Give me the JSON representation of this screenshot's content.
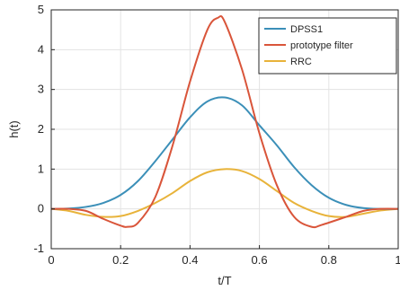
{
  "chart_data": {
    "type": "line",
    "title": "",
    "xlabel": "t/T",
    "ylabel": "h(t)",
    "xlim": [
      0,
      1
    ],
    "ylim": [
      -1,
      5
    ],
    "xticks": [
      0,
      0.2,
      0.4,
      0.6,
      0.8,
      1
    ],
    "xtick_labels": [
      "0",
      "0.2",
      "0.4",
      "0.6",
      "0.8",
      "1"
    ],
    "yticks": [
      -1,
      0,
      1,
      2,
      3,
      4,
      5
    ],
    "ytick_labels": [
      "-1",
      "0",
      "1",
      "2",
      "3",
      "4",
      "5"
    ],
    "grid": true,
    "legend_position": "top-right",
    "series": [
      {
        "name": "DPSS1",
        "color": "#3b8fb8",
        "x": [
          0,
          0.05,
          0.1,
          0.15,
          0.2,
          0.25,
          0.3,
          0.35,
          0.4,
          0.45,
          0.5,
          0.55,
          0.6,
          0.65,
          0.7,
          0.75,
          0.8,
          0.85,
          0.9,
          0.95,
          1
        ],
        "y": [
          0,
          0.01,
          0.05,
          0.15,
          0.35,
          0.7,
          1.2,
          1.75,
          2.3,
          2.7,
          2.8,
          2.6,
          2.1,
          1.6,
          1.05,
          0.6,
          0.28,
          0.1,
          0.02,
          0,
          0
        ]
      },
      {
        "name": "prototype filter",
        "color": "#d9553a",
        "x": [
          0,
          0.05,
          0.1,
          0.15,
          0.2,
          0.22,
          0.25,
          0.3,
          0.35,
          0.4,
          0.45,
          0.48,
          0.5,
          0.55,
          0.6,
          0.65,
          0.7,
          0.75,
          0.78,
          0.85,
          0.9,
          0.95,
          1
        ],
        "y": [
          0,
          0,
          -0.05,
          -0.25,
          -0.42,
          -0.45,
          -0.35,
          0.3,
          1.6,
          3.2,
          4.5,
          4.8,
          4.7,
          3.5,
          1.9,
          0.6,
          -0.2,
          -0.45,
          -0.4,
          -0.2,
          -0.05,
          0,
          0
        ]
      },
      {
        "name": "RRC",
        "color": "#e8b33a",
        "x": [
          0,
          0.05,
          0.1,
          0.15,
          0.2,
          0.25,
          0.3,
          0.35,
          0.4,
          0.45,
          0.5,
          0.55,
          0.6,
          0.65,
          0.7,
          0.75,
          0.8,
          0.85,
          0.9,
          0.95,
          1
        ],
        "y": [
          0,
          -0.05,
          -0.15,
          -0.2,
          -0.18,
          -0.05,
          0.15,
          0.4,
          0.7,
          0.92,
          1.0,
          0.95,
          0.75,
          0.45,
          0.15,
          -0.05,
          -0.18,
          -0.2,
          -0.12,
          -0.04,
          0
        ]
      }
    ]
  }
}
